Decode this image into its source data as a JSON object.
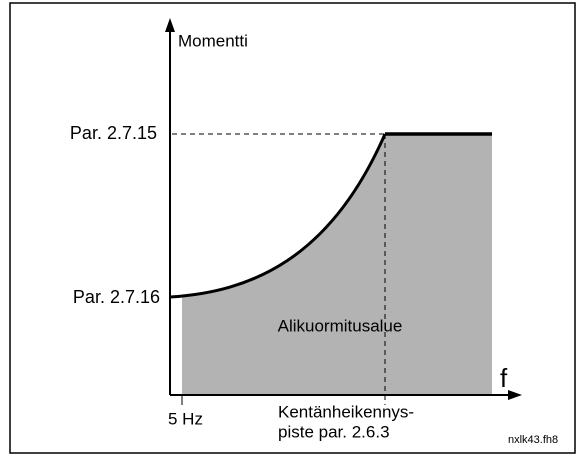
{
  "diagram": {
    "y_axis_label": "Momentti",
    "x_axis_label": "f",
    "upper_level_label": "Par. 2.7.15",
    "lower_level_label": "Par. 2.7.16",
    "region_label": "Alikuormitusalue",
    "start_frequency_label": "5 Hz",
    "field_weakening_label": [
      "Kentänheikennys-",
      "piste par. 2.6.3"
    ],
    "file_name": "nxlk43.fh8"
  }
}
